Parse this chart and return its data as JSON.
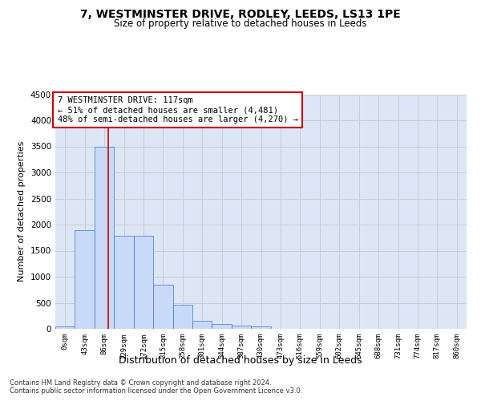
{
  "title": "7, WESTMINSTER DRIVE, RODLEY, LEEDS, LS13 1PE",
  "subtitle": "Size of property relative to detached houses in Leeds",
  "xlabel": "Distribution of detached houses by size in Leeds",
  "ylabel": "Number of detached properties",
  "bin_labels": [
    "0sqm",
    "43sqm",
    "86sqm",
    "129sqm",
    "172sqm",
    "215sqm",
    "258sqm",
    "301sqm",
    "344sqm",
    "387sqm",
    "430sqm",
    "473sqm",
    "516sqm",
    "559sqm",
    "602sqm",
    "645sqm",
    "688sqm",
    "731sqm",
    "774sqm",
    "817sqm",
    "860sqm"
  ],
  "bar_values": [
    50,
    1900,
    3500,
    1780,
    1780,
    840,
    460,
    160,
    100,
    65,
    50,
    0,
    0,
    0,
    0,
    0,
    0,
    0,
    0,
    0,
    0
  ],
  "bar_color": "#c9daf8",
  "bar_edge_color": "#4472c4",
  "grid_color": "#cccccc",
  "background_color": "#dce6f7",
  "vline_color": "#cc0000",
  "annotation_text": "7 WESTMINSTER DRIVE: 117sqm\n← 51% of detached houses are smaller (4,481)\n48% of semi-detached houses are larger (4,270) →",
  "annotation_box_color": "#ffffff",
  "annotation_border_color": "#cc0000",
  "ylim": [
    0,
    4500
  ],
  "yticks": [
    0,
    500,
    1000,
    1500,
    2000,
    2500,
    3000,
    3500,
    4000,
    4500
  ],
  "footer_line1": "Contains HM Land Registry data © Crown copyright and database right 2024.",
  "footer_line2": "Contains public sector information licensed under the Open Government Licence v3.0.",
  "title_fontsize": 10,
  "subtitle_fontsize": 8.5,
  "xlabel_fontsize": 9,
  "ylabel_fontsize": 8,
  "annotation_fontsize": 7.5,
  "footer_fontsize": 6
}
